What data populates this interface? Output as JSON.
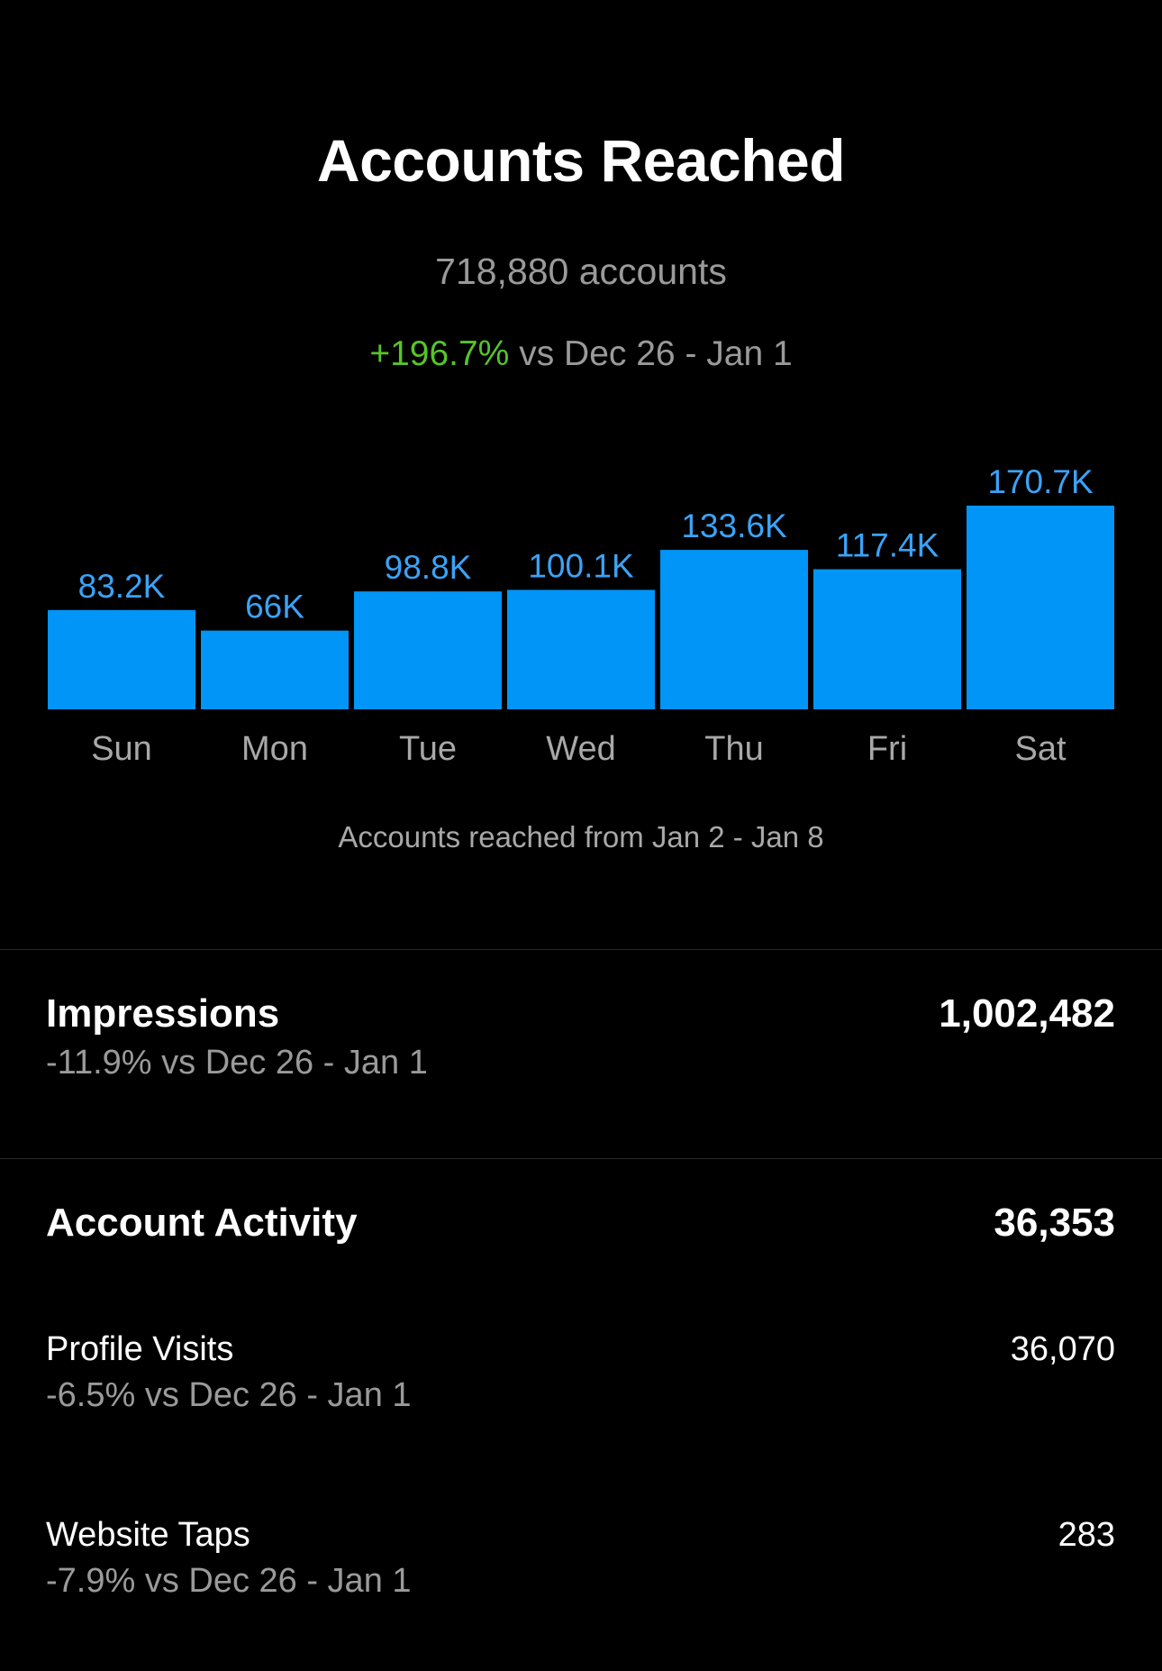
{
  "header": {
    "title": "Accounts Reached",
    "subtitle": "718,880 accounts",
    "change": "+196.7%",
    "change_suffix": " vs Dec 26 - Jan 1"
  },
  "chart_data": {
    "type": "bar",
    "categories": [
      "Sun",
      "Mon",
      "Tue",
      "Wed",
      "Thu",
      "Fri",
      "Sat"
    ],
    "values": [
      83.2,
      66,
      98.8,
      100.1,
      133.6,
      117.4,
      170.7
    ],
    "value_labels": [
      "83.2K",
      "66K",
      "98.8K",
      "100.1K",
      "133.6K",
      "117.4K",
      "170.7K"
    ],
    "unit": "K",
    "ylim": [
      0,
      170.7
    ],
    "grid": false,
    "bar_color": "#0095f6",
    "label_color": "#3ba3f7"
  },
  "caption": "Accounts reached from Jan 2 - Jan 8",
  "impressions": {
    "label": "Impressions",
    "change": "-11.9% vs Dec 26 - Jan 1",
    "value": "1,002,482"
  },
  "account_activity": {
    "label": "Account Activity",
    "value": "36,353",
    "items": [
      {
        "label": "Profile Visits",
        "change": "-6.5% vs Dec 26 - Jan 1",
        "value": "36,070"
      },
      {
        "label": "Website Taps",
        "change": "-7.9% vs Dec 26 - Jan 1",
        "value": "283"
      }
    ]
  },
  "colors": {
    "background": "#000000",
    "positive": "#58c32a",
    "secondary_text": "#9a9a9a"
  }
}
